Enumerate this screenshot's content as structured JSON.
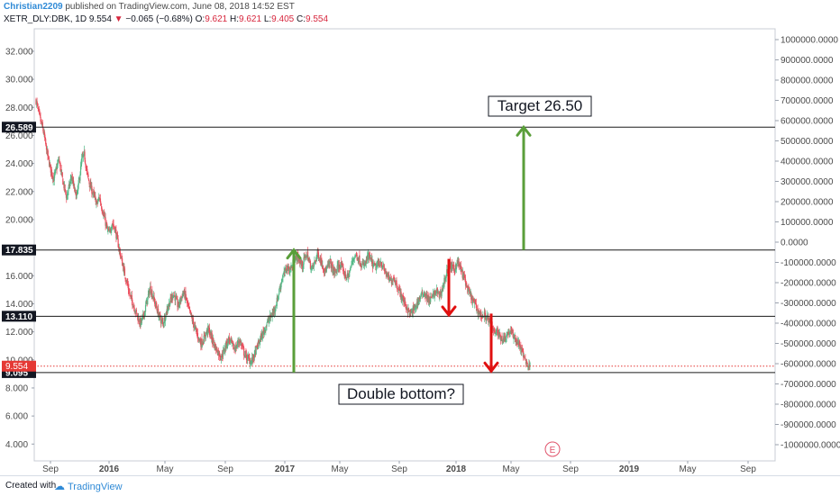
{
  "header": {
    "author": "Christian2209",
    "published": " published on TradingView.com, June 08, 2018 14:52 EST",
    "symbol": "XETR_DLY:DBK, 1D",
    "last": "9.554",
    "change_arrow": "▼",
    "change": "−0.065 (−0.68%)",
    "o_label": "O:",
    "o_value": "9.621",
    "h_label": "H:",
    "h_value": "9.621",
    "l_label": "L:",
    "l_value": "9.405",
    "c_label": "C:",
    "c_value": "9.554"
  },
  "footer": {
    "created_label": "Created with",
    "brand": "TradingView",
    "brand_icon": "cloud-icon"
  },
  "colors": {
    "up": "#53b987",
    "down": "#eb4d5c",
    "green_arrow": "#5a9e3a",
    "red_arrow": "#e01010",
    "level_line": "#1a1a1a",
    "price_line": "#e53935",
    "event_marker": "#e0526a"
  },
  "chart_data": {
    "type": "candlestick",
    "symbol": "XETR_DLY:DBK",
    "interval": "1D",
    "y_left_ticks": [
      "32.000",
      "30.000",
      "28.000",
      "26.000",
      "24.000",
      "22.000",
      "20.000",
      "16.000",
      "14.000",
      "12.000",
      "10.000",
      "8.000",
      "6.000",
      "4.000"
    ],
    "y_right_ticks": [
      "1000000.0000",
      "900000.0000",
      "800000.0000",
      "700000.0000",
      "600000.0000",
      "500000.0000",
      "400000.0000",
      "300000.0000",
      "200000.0000",
      "100000.0000",
      "0.0000",
      "-100000.0000",
      "-200000.0000",
      "-300000.0000",
      "-400000.0000",
      "-500000.0000",
      "-600000.0000",
      "-700000.0000",
      "-800000.0000",
      "-900000.0000",
      "-1000000.0000"
    ],
    "x_ticks": [
      "Sep",
      "2016",
      "May",
      "Sep",
      "2017",
      "May",
      "Sep",
      "2018",
      "May",
      "Sep",
      "2019",
      "May",
      "Sep"
    ],
    "y_left_range": [
      2.8,
      33.6
    ],
    "levels": [
      "26.589",
      "17.835",
      "13.110",
      "9.095"
    ],
    "last_price": "9.554",
    "annotations": [
      "Target 26.50",
      "Double bottom?"
    ],
    "event_marker": "E",
    "price_path_weekly": [
      28.5,
      27.6,
      26.9,
      26.2,
      25.1,
      24.2,
      23.4,
      22.9,
      23.6,
      24.3,
      23.2,
      22.4,
      21.6,
      22.3,
      23.1,
      22.2,
      21.6,
      22.8,
      24.2,
      24.7,
      23.4,
      22.6,
      22.1,
      21.6,
      21.1,
      21.6,
      20.8,
      20.1,
      19.3,
      19.0,
      19.8,
      19.4,
      18.6,
      17.7,
      16.9,
      16.1,
      15.4,
      14.6,
      14.1,
      13.6,
      13.1,
      12.6,
      12.9,
      13.6,
      14.4,
      15.1,
      14.6,
      14.0,
      13.4,
      12.9,
      12.6,
      13.2,
      13.8,
      14.2,
      14.7,
      14.4,
      13.8,
      14.3,
      14.8,
      14.5,
      13.7,
      13.2,
      12.6,
      12.1,
      11.6,
      11.2,
      11.4,
      11.9,
      12.2,
      11.7,
      11.2,
      10.8,
      10.5,
      10.2,
      10.6,
      11.1,
      11.5,
      11.2,
      10.8,
      10.9,
      11.4,
      11.1,
      10.5,
      10.2,
      10.0,
      9.9,
      10.3,
      10.8,
      11.3,
      11.7,
      12.1,
      12.6,
      12.9,
      13.2,
      13.6,
      14.2,
      15.0,
      15.8,
      16.2,
      16.6,
      16.4,
      16.7,
      17.1,
      17.4,
      17.0,
      16.7,
      17.3,
      17.5,
      16.8,
      16.5,
      17.0,
      17.6,
      17.2,
      16.8,
      16.3,
      16.6,
      17.0,
      16.4,
      16.2,
      16.6,
      16.8,
      16.4,
      16.0,
      15.9,
      16.5,
      17.2,
      17.5,
      17.3,
      16.9,
      16.7,
      16.9,
      17.4,
      17.1,
      16.7,
      16.6,
      16.8,
      17.0,
      16.5,
      16.2,
      15.8,
      15.6,
      15.9,
      15.5,
      15.0,
      14.6,
      14.2,
      13.8,
      13.4,
      13.3,
      13.6,
      13.9,
      14.3,
      14.6,
      14.8,
      14.5,
      14.2,
      14.4,
      14.7,
      14.9,
      14.6,
      14.9,
      15.6,
      16.3,
      16.8,
      16.6,
      16.4,
      17.0,
      16.7,
      16.2,
      15.8,
      15.1,
      14.7,
      14.3,
      14.0,
      13.6,
      13.3,
      13.1,
      13.2,
      13.0,
      12.6,
      12.3,
      12.1,
      11.9,
      11.7,
      11.5,
      11.6,
      11.9,
      12.0,
      11.8,
      11.5,
      11.2,
      10.9,
      10.4,
      10.0,
      9.6,
      9.55
    ]
  }
}
